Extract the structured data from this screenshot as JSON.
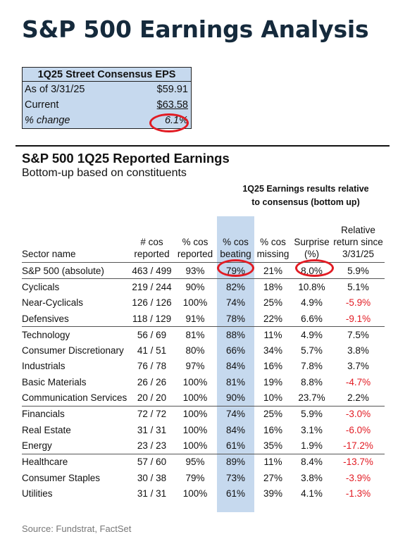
{
  "title": "S&P 500 Earnings Analysis",
  "consensus": {
    "header": "1Q25 Street Consensus EPS",
    "rows": [
      {
        "label": "As of 3/31/25",
        "value": "$59.91"
      },
      {
        "label": "Current",
        "value": "$63.58"
      },
      {
        "label": "% change",
        "value": "6.1%"
      }
    ]
  },
  "section": {
    "title": "S&P 500 1Q25 Reported Earnings",
    "subtitle": "Bottom-up based on constituents",
    "group_header_line1": "1Q25 Earnings results relative",
    "group_header_line2": "to consensus (bottom up)"
  },
  "table": {
    "headers": {
      "sector": "Sector name",
      "reported": "# cos reported",
      "pct_reported": "% cos reported",
      "beating": "% cos beating",
      "missing": "% cos missing",
      "surprise": "Surprise (%)",
      "relative": "Relative return since 3/31/25"
    },
    "rows": [
      {
        "name": "S&P 500 (absolute)",
        "reported": "463 / 499",
        "pct": "93%",
        "beat": "79%",
        "miss": "21%",
        "surprise": "8.0%",
        "rel": "5.9%",
        "neg": false,
        "sep": false
      },
      {
        "name": "Cyclicals",
        "reported": "219 / 244",
        "pct": "90%",
        "beat": "82%",
        "miss": "18%",
        "surprise": "10.8%",
        "rel": "5.1%",
        "neg": false,
        "sep": true
      },
      {
        "name": "Near-Cyclicals",
        "reported": "126 / 126",
        "pct": "100%",
        "beat": "74%",
        "miss": "25%",
        "surprise": "4.9%",
        "rel": "-5.9%",
        "neg": true,
        "sep": false
      },
      {
        "name": "Defensives",
        "reported": "118 / 129",
        "pct": "91%",
        "beat": "78%",
        "miss": "22%",
        "surprise": "6.6%",
        "rel": "-9.1%",
        "neg": true,
        "sep": false
      },
      {
        "name": "Technology",
        "reported": "56 / 69",
        "pct": "81%",
        "beat": "88%",
        "miss": "11%",
        "surprise": "4.9%",
        "rel": "7.5%",
        "neg": false,
        "sep": true
      },
      {
        "name": "Consumer Discretionary",
        "reported": "41 / 51",
        "pct": "80%",
        "beat": "66%",
        "miss": "34%",
        "surprise": "5.7%",
        "rel": "3.8%",
        "neg": false,
        "sep": false
      },
      {
        "name": "Industrials",
        "reported": "76 / 78",
        "pct": "97%",
        "beat": "84%",
        "miss": "16%",
        "surprise": "7.8%",
        "rel": "3.7%",
        "neg": false,
        "sep": false
      },
      {
        "name": "Basic Materials",
        "reported": "26 / 26",
        "pct": "100%",
        "beat": "81%",
        "miss": "19%",
        "surprise": "8.8%",
        "rel": "-4.7%",
        "neg": true,
        "sep": false
      },
      {
        "name": "Communication Services",
        "reported": "20 / 20",
        "pct": "100%",
        "beat": "90%",
        "miss": "10%",
        "surprise": "23.7%",
        "rel": "2.2%",
        "neg": false,
        "sep": false
      },
      {
        "name": "Financials",
        "reported": "72 / 72",
        "pct": "100%",
        "beat": "74%",
        "miss": "25%",
        "surprise": "5.9%",
        "rel": "-3.0%",
        "neg": true,
        "sep": true
      },
      {
        "name": "Real Estate",
        "reported": "31 / 31",
        "pct": "100%",
        "beat": "84%",
        "miss": "16%",
        "surprise": "3.1%",
        "rel": "-6.0%",
        "neg": true,
        "sep": false
      },
      {
        "name": "Energy",
        "reported": "23 / 23",
        "pct": "100%",
        "beat": "61%",
        "miss": "35%",
        "surprise": "1.9%",
        "rel": "-17.2%",
        "neg": true,
        "sep": false
      },
      {
        "name": "Healthcare",
        "reported": "57 / 60",
        "pct": "95%",
        "beat": "89%",
        "miss": "11%",
        "surprise": "8.4%",
        "rel": "-13.7%",
        "neg": true,
        "sep": true
      },
      {
        "name": "Consumer Staples",
        "reported": "30 / 38",
        "pct": "79%",
        "beat": "73%",
        "miss": "27%",
        "surprise": "3.8%",
        "rel": "-3.9%",
        "neg": true,
        "sep": false
      },
      {
        "name": "Utilities",
        "reported": "31 / 31",
        "pct": "100%",
        "beat": "61%",
        "miss": "39%",
        "surprise": "4.1%",
        "rel": "-1.3%",
        "neg": true,
        "sep": false
      }
    ]
  },
  "source": "Source: Fundstrat, FactSet",
  "colors": {
    "highlight_fill": "#c6d9ee",
    "negative": "#e21b23",
    "annotation_circle": "#e21b23",
    "title": "#152a3c"
  }
}
